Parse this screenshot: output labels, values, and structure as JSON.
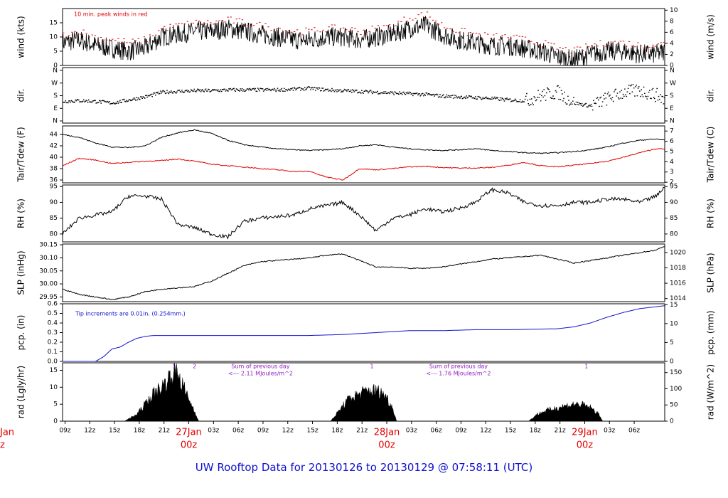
{
  "title": "UW Rooftop Data for 20130126  to  20130129 @ 07:58:11  (UTC)",
  "colors": {
    "ink": "#000000",
    "red": "#e00000",
    "blue": "#1010d0",
    "purple": "#9020c0"
  },
  "x_axis": {
    "tick_labels": [
      "09z",
      "12z",
      "15z",
      "18z",
      "21z",
      "03z",
      "06z",
      "09z",
      "12z",
      "15z",
      "18z",
      "21z",
      "03z",
      "06z",
      "09z",
      "12z",
      "15z",
      "18z",
      "21z",
      "03z",
      "06z"
    ],
    "day_labels": [
      {
        "date": "27Jan",
        "hour": "00z"
      },
      {
        "date": "28Jan",
        "hour": "00z"
      },
      {
        "date": "29Jan",
        "hour": "00z"
      }
    ],
    "left_edge_labels": {
      "date": "Jan",
      "hour": "z"
    }
  },
  "chart_data": [
    {
      "type": "line",
      "id": "wind",
      "ylabel": "wind (kts)",
      "ylabel_right": "wind (m/s)",
      "ylim": [
        0,
        20
      ],
      "y_ticks": [
        "0",
        "5",
        "10",
        "15"
      ],
      "y2lim": [
        0,
        10.3
      ],
      "y2_ticks": [
        "0",
        "2",
        "4",
        "6",
        "8",
        "10"
      ],
      "annotation": "10 min. peak winds in red",
      "series": [
        {
          "name": "wind speed",
          "color": "#000000",
          "x": [
            0,
            2,
            4,
            6,
            8,
            10,
            12,
            14,
            16,
            18,
            20,
            22,
            24,
            26,
            28,
            30,
            32,
            34,
            36,
            38,
            40,
            42,
            44,
            46,
            48,
            50,
            52,
            54,
            56,
            58,
            60,
            62,
            64,
            66,
            68,
            70,
            72,
            73
          ],
          "y": [
            8,
            9,
            7,
            6,
            5,
            6,
            10,
            11,
            12,
            12,
            13,
            12,
            11,
            10,
            9,
            9,
            10,
            10,
            9,
            10,
            11,
            13,
            14,
            11,
            9,
            8,
            7,
            7,
            6,
            5,
            3,
            2,
            4,
            5,
            5,
            4,
            4,
            5
          ]
        },
        {
          "name": "10 min. peak winds",
          "color": "#e00000",
          "style": "dots",
          "x": [
            0,
            2,
            4,
            6,
            8,
            10,
            12,
            14,
            16,
            18,
            20,
            22,
            24,
            26,
            28,
            30,
            32,
            34,
            36,
            38,
            40,
            42,
            44,
            46,
            48,
            50,
            52,
            54,
            56,
            58,
            60,
            62,
            64,
            66,
            68,
            70,
            72,
            73
          ],
          "y": [
            11,
            12,
            10,
            9,
            8,
            9,
            13,
            14,
            15,
            15,
            16,
            15,
            14,
            13,
            12,
            12,
            13,
            13,
            12,
            13,
            14,
            17,
            18,
            14,
            12,
            11,
            10,
            10,
            9,
            8,
            6,
            5,
            7,
            8,
            8,
            7,
            7,
            8
          ]
        }
      ]
    },
    {
      "type": "scatter",
      "id": "dir",
      "ylabel": "dir.",
      "ylabel_right": "dir.",
      "ylim": [
        0,
        360
      ],
      "y_ticks": [
        "N",
        "E",
        "S",
        "W",
        "N"
      ],
      "y2_ticks": [
        "N",
        "E",
        "S",
        "W",
        "N"
      ],
      "series": [
        {
          "name": "wind direction",
          "color": "#000000",
          "x": [
            0,
            2,
            4,
            6,
            8,
            10,
            12,
            14,
            16,
            18,
            20,
            22,
            24,
            26,
            28,
            30,
            32,
            34,
            36,
            38,
            40,
            42,
            44,
            46,
            48,
            50,
            52,
            54,
            56,
            58,
            60,
            62,
            64,
            66,
            68,
            70,
            72,
            73
          ],
          "y": [
            140,
            145,
            140,
            130,
            150,
            170,
            200,
            205,
            210,
            210,
            215,
            215,
            215,
            215,
            220,
            225,
            215,
            210,
            205,
            200,
            195,
            190,
            185,
            175,
            170,
            165,
            160,
            150,
            145,
            180,
            200,
            130,
            110,
            160,
            200,
            210,
            180,
            150
          ]
        }
      ]
    },
    {
      "type": "line",
      "id": "temp",
      "ylabel": "Tair/Tdew (F)",
      "ylabel_right": "Tair/Tdew (C)",
      "ylim": [
        35.5,
        45.5
      ],
      "y_ticks": [
        "36",
        "38",
        "40",
        "42",
        "44"
      ],
      "y2lim": [
        1.94,
        7.5
      ],
      "y2_ticks": [
        "2",
        "3",
        "4",
        "5",
        "6",
        "7"
      ],
      "series": [
        {
          "name": "Tair",
          "color": "#000000",
          "x": [
            0,
            2,
            4,
            6,
            8,
            10,
            12,
            14,
            16,
            18,
            20,
            22,
            24,
            26,
            28,
            30,
            32,
            34,
            36,
            38,
            40,
            42,
            44,
            46,
            48,
            50,
            52,
            54,
            56,
            58,
            60,
            62,
            64,
            66,
            68,
            70,
            72,
            73
          ],
          "y": [
            44,
            43.5,
            42.5,
            41.8,
            41.7,
            42,
            43.5,
            44.3,
            44.8,
            44.2,
            43,
            42.2,
            41.8,
            41.5,
            41.3,
            41.2,
            41.3,
            41.5,
            42,
            42.2,
            41.8,
            41.5,
            41.3,
            41.2,
            41.3,
            41.5,
            41.2,
            41,
            40.8,
            40.7,
            40.8,
            41,
            41.3,
            41.8,
            42.5,
            43,
            43.2,
            43
          ]
        },
        {
          "name": "Tdew",
          "color": "#e00000",
          "x": [
            0,
            2,
            4,
            6,
            8,
            10,
            12,
            14,
            16,
            18,
            20,
            22,
            24,
            26,
            28,
            30,
            32,
            34,
            36,
            38,
            40,
            42,
            44,
            46,
            48,
            50,
            52,
            54,
            56,
            58,
            60,
            62,
            64,
            66,
            68,
            70,
            72,
            73
          ],
          "y": [
            38.5,
            39.8,
            39.5,
            38.9,
            39.1,
            39.3,
            39.4,
            39.7,
            39.3,
            38.8,
            38.5,
            38.3,
            38,
            37.8,
            37.5,
            37.5,
            36.5,
            36,
            38,
            37.8,
            38,
            38.3,
            38.4,
            38.2,
            38.1,
            38.1,
            38.2,
            38.6,
            39.1,
            38.5,
            38.3,
            38.6,
            38.9,
            39.3,
            40,
            40.8,
            41.5,
            41.4
          ]
        }
      ]
    },
    {
      "type": "line",
      "id": "rh",
      "ylabel": "RH (%)",
      "ylabel_right": "RH (%)",
      "ylim": [
        77.5,
        95.5
      ],
      "y_ticks": [
        "80",
        "85",
        "90",
        "95"
      ],
      "y2_ticks": [
        "80",
        "85",
        "90",
        "95"
      ],
      "series": [
        {
          "name": "RH",
          "color": "#000000",
          "x": [
            0,
            2,
            4,
            6,
            8,
            10,
            12,
            14,
            16,
            18,
            20,
            22,
            24,
            26,
            28,
            30,
            32,
            34,
            36,
            38,
            40,
            42,
            44,
            46,
            48,
            50,
            52,
            54,
            56,
            58,
            60,
            62,
            64,
            66,
            68,
            70,
            72,
            73
          ],
          "y": [
            80,
            85,
            86,
            87,
            92,
            92,
            91,
            83,
            82,
            80,
            79,
            84,
            85,
            85.5,
            86,
            88,
            89,
            90,
            86,
            81,
            85,
            86,
            88,
            87,
            88,
            90,
            94,
            93,
            90,
            89,
            89,
            90,
            90,
            91,
            91,
            90,
            92,
            95
          ]
        }
      ]
    },
    {
      "type": "line",
      "id": "slp",
      "ylabel": "SLP (inHg)",
      "ylabel_right": "SLP (hPa)",
      "ylim": [
        29.932,
        30.153
      ],
      "y_ticks": [
        "29.95",
        "30.00",
        "30.05",
        "30.10",
        "30.15"
      ],
      "y2lim": [
        1013.6,
        1021.1
      ],
      "y2_ticks": [
        "1014",
        "1016",
        "1018",
        "1020"
      ],
      "series": [
        {
          "name": "SLP",
          "color": "#000000",
          "x": [
            0,
            2,
            4,
            6,
            8,
            10,
            12,
            14,
            16,
            18,
            20,
            22,
            24,
            26,
            28,
            30,
            32,
            34,
            36,
            38,
            40,
            42,
            44,
            46,
            48,
            50,
            52,
            54,
            56,
            58,
            60,
            62,
            64,
            66,
            68,
            70,
            72,
            73
          ],
          "y": [
            29.98,
            29.96,
            29.95,
            29.94,
            29.95,
            29.97,
            29.98,
            29.985,
            29.99,
            30.01,
            30.04,
            30.07,
            30.085,
            30.09,
            30.095,
            30.1,
            30.11,
            30.115,
            30.09,
            30.065,
            30.065,
            30.06,
            30.06,
            30.065,
            30.075,
            30.085,
            30.095,
            30.1,
            30.105,
            30.11,
            30.095,
            30.08,
            30.09,
            30.1,
            30.11,
            30.12,
            30.13,
            30.145
          ]
        }
      ]
    },
    {
      "type": "line",
      "id": "pcp",
      "ylabel": "pcp. (in)",
      "ylabel_right": "pcp. (mm)",
      "ylim": [
        0,
        0.6
      ],
      "y_ticks": [
        "0.0",
        "0.1",
        "0.2",
        "0.3",
        "0.4",
        "0.5",
        "0.6"
      ],
      "y2lim": [
        0,
        15.24
      ],
      "y2_ticks": [
        "0",
        "5",
        "10",
        "15"
      ],
      "annotation": "Tip increments are 0.01in. (0.254mm.)",
      "series": [
        {
          "name": "precipitation",
          "color": "#1010d0",
          "x": [
            0,
            4,
            5,
            6,
            7,
            8,
            9,
            10,
            11,
            12,
            14,
            20,
            30,
            34,
            38,
            40,
            42,
            46,
            50,
            54,
            60,
            62,
            64,
            66,
            68,
            70,
            72,
            73
          ],
          "y": [
            0,
            0,
            0.05,
            0.13,
            0.15,
            0.2,
            0.24,
            0.26,
            0.27,
            0.27,
            0.27,
            0.27,
            0.27,
            0.28,
            0.3,
            0.31,
            0.32,
            0.32,
            0.33,
            0.33,
            0.34,
            0.36,
            0.4,
            0.46,
            0.51,
            0.55,
            0.57,
            0.58
          ]
        }
      ]
    },
    {
      "type": "area",
      "id": "rad",
      "ylabel": "rad (Lgly/hr)",
      "ylabel_right": "rad (W/m^2)",
      "ylim": [
        0,
        17.2
      ],
      "y_ticks": [
        "0",
        "5",
        "10",
        "15"
      ],
      "y2lim": [
        0,
        180
      ],
      "y2_ticks": [
        "0",
        "50",
        "100",
        "150"
      ],
      "annotations": [
        {
          "x": 13.5,
          "text": "1"
        },
        {
          "x": 16,
          "text": "2"
        },
        {
          "x": 24,
          "text": "Sum of previous day"
        },
        {
          "x": 24,
          "text": "<--- 2.11 MJoules/m^2"
        },
        {
          "x": 37.5,
          "text": "1"
        },
        {
          "x": 48,
          "text": "Sum of previous day"
        },
        {
          "x": 48,
          "text": "<--- 1.76 MJoules/m^2"
        },
        {
          "x": 63.5,
          "text": "1"
        }
      ],
      "series": [
        {
          "name": "solar radiation",
          "color": "#000000",
          "x": [
            7.5,
            9,
            10,
            11,
            12,
            13,
            13.5,
            14,
            15,
            16,
            16.5,
            32.5,
            33.5,
            34.5,
            35,
            36,
            37,
            38,
            39,
            40,
            40.5,
            56.5,
            57.5,
            58.5,
            60,
            61,
            62,
            63,
            64,
            65,
            65.5
          ],
          "y": [
            0,
            2,
            5,
            8,
            10,
            13,
            15,
            14,
            8,
            3,
            0,
            0,
            3,
            6,
            7,
            8,
            9,
            9,
            8,
            4,
            0,
            0,
            2,
            3,
            4,
            4.5,
            5,
            4.8,
            4,
            2,
            0
          ]
        }
      ]
    }
  ]
}
